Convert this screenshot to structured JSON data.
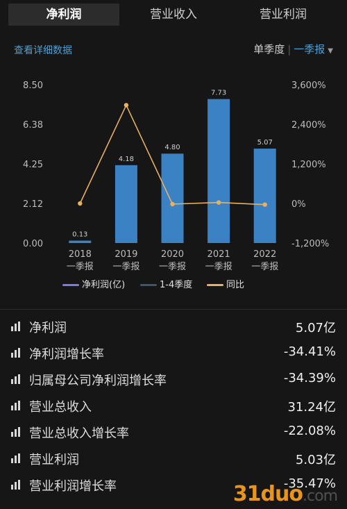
{
  "tabs": [
    "净利润",
    "营业收入",
    "营业利润"
  ],
  "active_tab": 0,
  "detail_link": "查看详细数据",
  "period": {
    "single": "单季度",
    "selected": "一季报"
  },
  "chart_data": {
    "type": "bar",
    "categories": [
      [
        "2018",
        "一季报"
      ],
      [
        "2019",
        "一季报"
      ],
      [
        "2020",
        "一季报"
      ],
      [
        "2021",
        "一季报"
      ],
      [
        "2022",
        "一季报"
      ]
    ],
    "series": [
      {
        "name": "净利润(亿)",
        "type": "bar",
        "axis": "left",
        "values": [
          0.13,
          4.18,
          4.8,
          7.73,
          5.07
        ],
        "labels": [
          "0.13",
          "4.18",
          "4.80",
          "7.73",
          "5.07"
        ],
        "color": "#3b82c4"
      },
      {
        "name": "同比",
        "type": "line",
        "axis": "right",
        "values": [
          0,
          2980,
          -20,
          30,
          -35
        ],
        "color": "#e8b060"
      }
    ],
    "legend": [
      {
        "label": "净利润(亿)",
        "color": "#7b7be8"
      },
      {
        "label": "1-4季度",
        "color": "#3d5570"
      },
      {
        "label": "同比",
        "color": "#e8b060"
      }
    ],
    "y_left": {
      "ticks": [
        "8.50",
        "6.38",
        "4.25",
        "2.12",
        "0.00"
      ],
      "range": [
        0,
        8.5
      ]
    },
    "y_right": {
      "ticks": [
        "3,600%",
        "2,400%",
        "1,200%",
        "0%",
        "-1,200%"
      ],
      "range": [
        -1200,
        3600
      ]
    },
    "legend_position": "bottom"
  },
  "metrics": [
    {
      "name": "净利润",
      "value": "5.07亿"
    },
    {
      "name": "净利润增长率",
      "value": "-34.41%"
    },
    {
      "name": "归属母公司净利润增长率",
      "value": "-34.39%"
    },
    {
      "name": "营业总收入",
      "value": "31.24亿"
    },
    {
      "name": "营业总收入增长率",
      "value": "-22.08%"
    },
    {
      "name": "营业利润",
      "value": "5.03亿"
    },
    {
      "name": "营业利润增长率",
      "value": "-35.47%"
    }
  ],
  "watermark": {
    "main": "31duo",
    "tld": ".com"
  }
}
